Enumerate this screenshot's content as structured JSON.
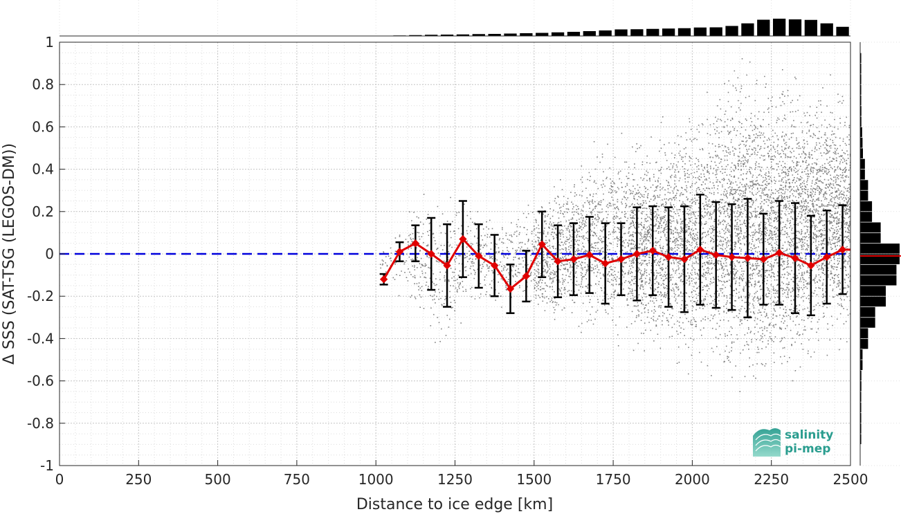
{
  "logo": {
    "line1": "salinity",
    "line2": "pi-mep",
    "icon": "salinity-pi-mep-logo-icon",
    "color": "#2a9d8f"
  },
  "chart_data": {
    "type": "scatter",
    "title": "",
    "xlabel": "Distance to ice edge [km]",
    "ylabel": "Δ SSS (SAT-TSG (LEGOS-DM))",
    "xlim": [
      0,
      2500
    ],
    "ylim": [
      -1,
      1
    ],
    "xticks": [
      0,
      250,
      500,
      750,
      1000,
      1250,
      1500,
      1750,
      2000,
      2250,
      2500
    ],
    "yticks": [
      -1,
      -0.8,
      -0.6,
      -0.4,
      -0.2,
      0,
      0.2,
      0.4,
      0.6,
      0.8,
      1
    ],
    "xtick_labels": [
      "0",
      "250",
      "500",
      "750",
      "1000",
      "1250",
      "1500",
      "1750",
      "2000",
      "2250",
      "2500"
    ],
    "ytick_labels": [
      "-1",
      "-0.8",
      "-0.6",
      "-0.4",
      "-0.2",
      "0",
      "0.2",
      "0.4",
      "0.6",
      "0.8",
      "1"
    ],
    "grid": true,
    "minor_grid": true,
    "colors": {
      "scatter": "#808080",
      "mean_line": "#e00000",
      "zero_line": "#0000dd",
      "error_bars": "#000000",
      "histograms": "#000000"
    },
    "zero_line": 0,
    "scatter_cloud": {
      "description_range_km": [
        1000,
        2500
      ],
      "spread_envelope": [
        {
          "x": 1000,
          "lo": -0.14,
          "hi": 0.02
        },
        {
          "x": 1100,
          "lo": -0.3,
          "hi": 0.3
        },
        {
          "x": 1200,
          "lo": -0.5,
          "hi": 0.32
        },
        {
          "x": 1300,
          "lo": -0.3,
          "hi": 0.3
        },
        {
          "x": 1400,
          "lo": -0.3,
          "hi": 0.2
        },
        {
          "x": 1500,
          "lo": -0.35,
          "hi": 0.3
        },
        {
          "x": 1600,
          "lo": -0.4,
          "hi": 0.45
        },
        {
          "x": 1700,
          "lo": -0.45,
          "hi": 0.6
        },
        {
          "x": 1800,
          "lo": -0.5,
          "hi": 0.6
        },
        {
          "x": 1900,
          "lo": -0.6,
          "hi": 0.7
        },
        {
          "x": 2000,
          "lo": -0.6,
          "hi": 0.75
        },
        {
          "x": 2100,
          "lo": -0.7,
          "hi": 1.0
        },
        {
          "x": 2200,
          "lo": -0.75,
          "hi": 1.0
        },
        {
          "x": 2300,
          "lo": -0.7,
          "hi": 0.95
        },
        {
          "x": 2400,
          "lo": -0.55,
          "hi": 0.9
        },
        {
          "x": 2500,
          "lo": -0.5,
          "hi": 0.85
        }
      ]
    },
    "binned_mean": {
      "x": [
        1025,
        1075,
        1125,
        1175,
        1225,
        1275,
        1325,
        1375,
        1425,
        1475,
        1525,
        1575,
        1625,
        1675,
        1725,
        1775,
        1825,
        1875,
        1925,
        1975,
        2025,
        2075,
        2125,
        2175,
        2225,
        2275,
        2325,
        2375,
        2425,
        2475
      ],
      "mean": [
        -0.12,
        0.01,
        0.05,
        0.0,
        -0.055,
        0.07,
        -0.01,
        -0.055,
        -0.165,
        -0.105,
        0.045,
        -0.035,
        -0.025,
        -0.005,
        -0.045,
        -0.025,
        0.0,
        0.015,
        -0.015,
        -0.025,
        0.02,
        -0.005,
        -0.015,
        -0.02,
        -0.025,
        0.005,
        -0.02,
        -0.055,
        -0.015,
        0.02
      ],
      "std": [
        0.025,
        0.045,
        0.085,
        0.17,
        0.195,
        0.18,
        0.15,
        0.145,
        0.115,
        0.12,
        0.155,
        0.17,
        0.17,
        0.18,
        0.19,
        0.17,
        0.22,
        0.21,
        0.235,
        0.25,
        0.26,
        0.25,
        0.25,
        0.28,
        0.215,
        0.245,
        0.26,
        0.235,
        0.22,
        0.21
      ]
    },
    "top_histogram": {
      "description": "counts per 50 km bin, normalized 0-1",
      "x": [
        25,
        75,
        125,
        175,
        225,
        275,
        325,
        375,
        425,
        475,
        525,
        575,
        625,
        675,
        725,
        775,
        825,
        875,
        925,
        975,
        1025,
        1075,
        1125,
        1175,
        1225,
        1275,
        1325,
        1375,
        1425,
        1475,
        1525,
        1575,
        1625,
        1675,
        1725,
        1775,
        1825,
        1875,
        1925,
        1975,
        2025,
        2075,
        2125,
        2175,
        2225,
        2275,
        2325,
        2375,
        2425,
        2475
      ],
      "values": [
        0,
        0,
        0,
        0,
        0,
        0,
        0,
        0,
        0,
        0,
        0,
        0,
        0,
        0,
        0,
        0,
        0,
        0,
        0,
        0,
        0.01,
        0.03,
        0.05,
        0.07,
        0.08,
        0.09,
        0.11,
        0.12,
        0.14,
        0.16,
        0.18,
        0.21,
        0.24,
        0.28,
        0.32,
        0.38,
        0.39,
        0.41,
        0.43,
        0.45,
        0.49,
        0.5,
        0.58,
        0.73,
        0.94,
        1.0,
        0.96,
        0.93,
        0.73,
        0.53
      ]
    },
    "right_histogram": {
      "description": "counts per 0.05 bin of delta SSS, normalized 0-1",
      "y": [
        0.975,
        0.925,
        0.875,
        0.825,
        0.775,
        0.725,
        0.675,
        0.625,
        0.575,
        0.525,
        0.475,
        0.425,
        0.375,
        0.325,
        0.275,
        0.225,
        0.175,
        0.125,
        0.075,
        0.025,
        -0.025,
        -0.075,
        -0.125,
        -0.175,
        -0.225,
        -0.275,
        -0.325,
        -0.375,
        -0.425,
        -0.475,
        -0.525,
        -0.575,
        -0.625,
        -0.675,
        -0.725,
        -0.775,
        -0.825,
        -0.875,
        -0.925,
        -0.975
      ],
      "values": [
        0,
        0.01,
        0.01,
        0.01,
        0.02,
        0.02,
        0.03,
        0.03,
        0.05,
        0.06,
        0.07,
        0.12,
        0.12,
        0.2,
        0.2,
        0.3,
        0.3,
        0.52,
        0.52,
        1.0,
        1.0,
        0.92,
        0.92,
        0.65,
        0.65,
        0.38,
        0.38,
        0.2,
        0.2,
        0.06,
        0.06,
        0.03,
        0.03,
        0.02,
        0.01,
        0.01,
        0.01,
        0.01,
        0.0,
        0.0
      ],
      "mean_marker": -0.01
    }
  }
}
